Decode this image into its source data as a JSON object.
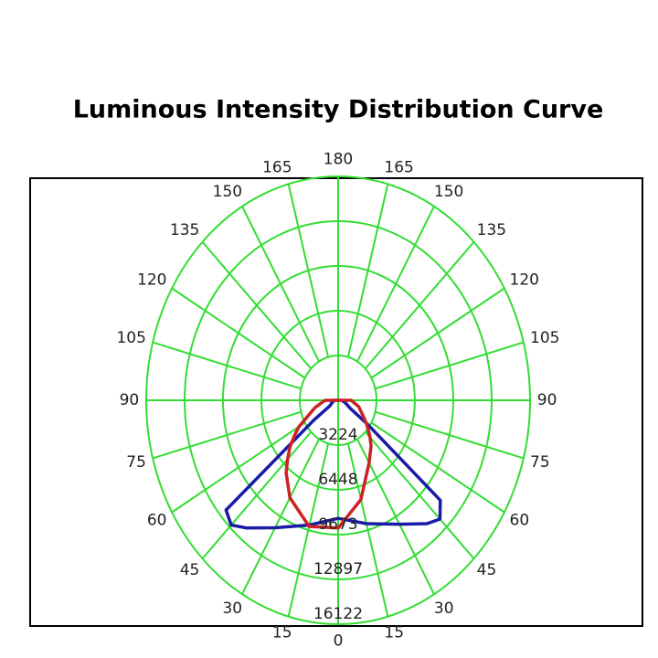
{
  "chart_data": {
    "type": "polar",
    "title": "Luminous Intensity Distribution Curve",
    "x": [
      -90,
      -75,
      -60,
      -55,
      -50,
      -45,
      -40,
      -30,
      -15,
      0,
      15,
      30,
      40,
      45,
      50,
      55,
      60,
      75,
      90
    ],
    "series": [
      {
        "color": "#1a1aa6",
        "values": [
          300,
          500,
          800,
          2500,
          12300,
          12700,
          12000,
          10600,
          9300,
          8500,
          9200,
          10300,
          11600,
          12100,
          11200,
          3000,
          1200,
          600,
          300
        ]
      },
      {
        "color": "#cc2222",
        "values": [
          1100,
          2000,
          3800,
          4500,
          5300,
          6000,
          6800,
          8100,
          9400,
          9200,
          7400,
          5200,
          4300,
          3800,
          3300,
          2900,
          2500,
          1800,
          1100
        ]
      }
    ],
    "ylim": [
      0,
      16122
    ],
    "yticks": [
      3224,
      6448,
      9673,
      12897,
      16122
    ],
    "xticks": [
      {
        "value": -165,
        "label": "165"
      },
      {
        "value": -150,
        "label": "150"
      },
      {
        "value": -135,
        "label": "135"
      },
      {
        "value": -120,
        "label": "120"
      },
      {
        "value": -105,
        "label": "105"
      },
      {
        "value": -90,
        "label": "90"
      },
      {
        "value": -75,
        "label": "75"
      },
      {
        "value": -60,
        "label": "60"
      },
      {
        "value": -45,
        "label": "45"
      },
      {
        "value": -30,
        "label": "30"
      },
      {
        "value": -15,
        "label": "15"
      },
      0,
      15,
      30,
      45,
      60,
      75,
      90,
      105,
      120,
      135,
      150,
      165,
      180
    ],
    "grid_color": "#33dd33"
  }
}
